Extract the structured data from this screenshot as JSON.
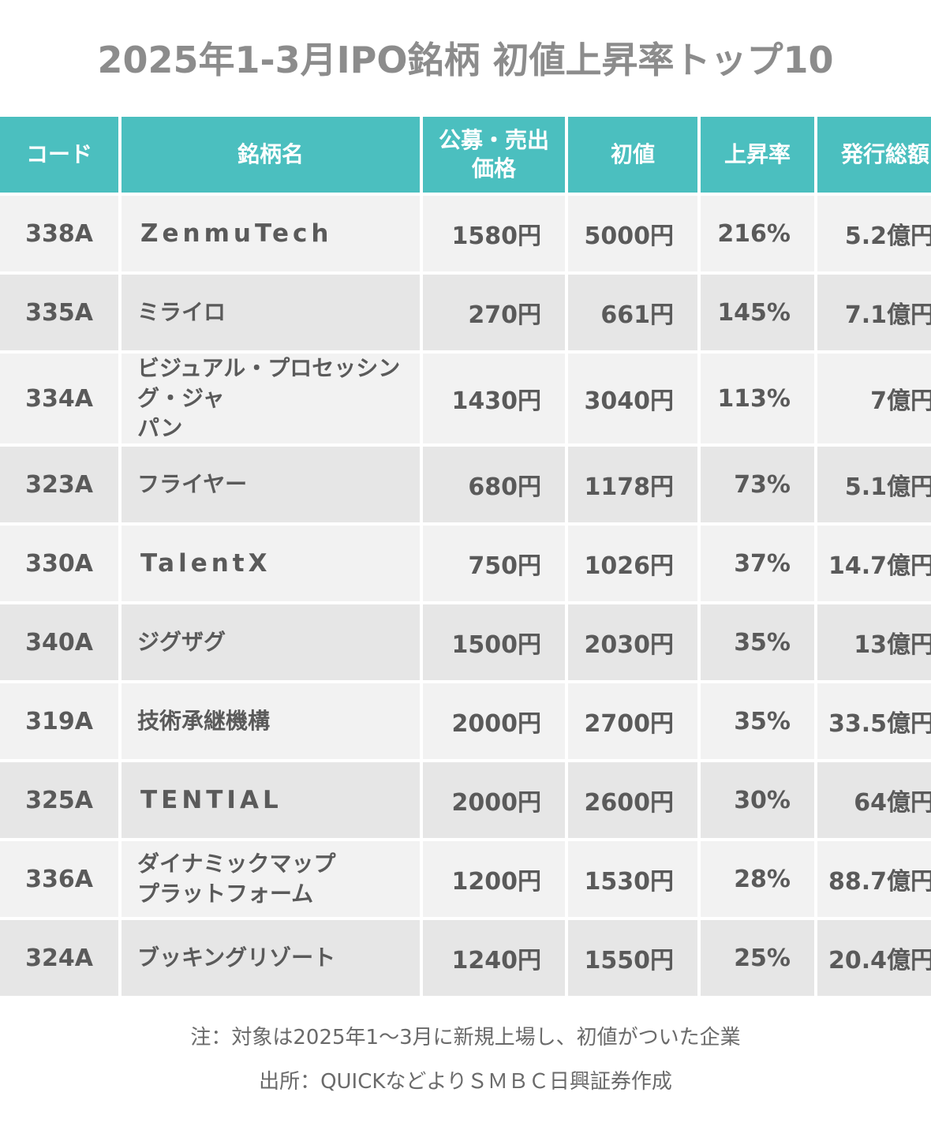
{
  "title": "2025年1-3月IPO銘柄 初値上昇率トップ10",
  "chart_data": {
    "type": "table",
    "columns": [
      "コード",
      "銘柄名",
      "公募・売出価格",
      "初値",
      "上昇率",
      "発行総額"
    ],
    "rows": [
      {
        "code": "338A",
        "name": "ZenmuTech",
        "offer_price": "1580円",
        "initial_price": "5000円",
        "rise": "216%",
        "issue_total": "5.2億円"
      },
      {
        "code": "335A",
        "name": "ミライロ",
        "offer_price": "270円",
        "initial_price": "661円",
        "rise": "145%",
        "issue_total": "7.1億円"
      },
      {
        "code": "334A",
        "name": "ビジュアル・プロセッシング・ジャパン",
        "offer_price": "1430円",
        "initial_price": "3040円",
        "rise": "113%",
        "issue_total": "7億円"
      },
      {
        "code": "323A",
        "name": "フライヤー",
        "offer_price": "680円",
        "initial_price": "1178円",
        "rise": "73%",
        "issue_total": "5.1億円"
      },
      {
        "code": "330A",
        "name": "TalentX",
        "offer_price": "750円",
        "initial_price": "1026円",
        "rise": "37%",
        "issue_total": "14.7億円"
      },
      {
        "code": "340A",
        "name": "ジグザグ",
        "offer_price": "1500円",
        "initial_price": "2030円",
        "rise": "35%",
        "issue_total": "13億円"
      },
      {
        "code": "319A",
        "name": "技術承継機構",
        "offer_price": "2000円",
        "initial_price": "2700円",
        "rise": "35%",
        "issue_total": "33.5億円"
      },
      {
        "code": "325A",
        "name": "TENTIAL",
        "offer_price": "2000円",
        "initial_price": "2600円",
        "rise": "30%",
        "issue_total": "64億円"
      },
      {
        "code": "336A",
        "name": "ダイナミックマップ プラットフォーム",
        "offer_price": "1200円",
        "initial_price": "1530円",
        "rise": "28%",
        "issue_total": "88.7億円"
      },
      {
        "code": "324A",
        "name": "ブッキングリゾート",
        "offer_price": "1240円",
        "initial_price": "1550円",
        "rise": "25%",
        "issue_total": "20.4億円"
      }
    ]
  },
  "notes": {
    "note1": "注：対象は2025年1〜3月に新規上場し、初値がついた企業",
    "note2": "出所：QUICKなどよりＳＭＢＣ日興証券作成"
  },
  "colors": {
    "header_bg": "#4bbfbf",
    "row_odd": "#f2f2f2",
    "row_even": "#e6e6e6",
    "title": "#8c8c8c"
  }
}
